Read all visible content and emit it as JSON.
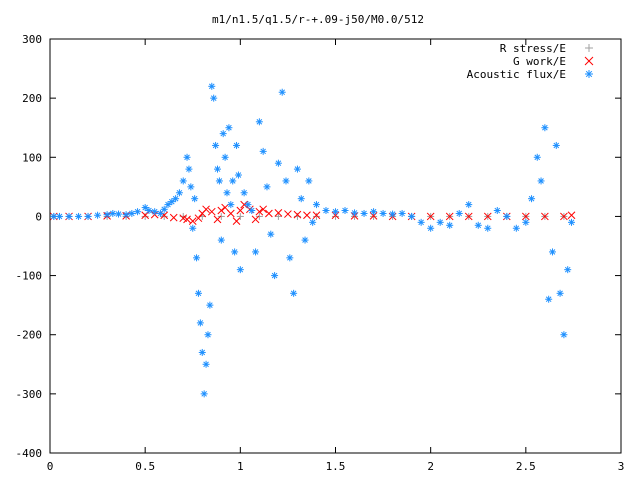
{
  "chart_data": {
    "type": "scatter",
    "title": "m1/n1.5/q1.5/r-+.09-j50/M0.0/512",
    "xlabel": "",
    "ylabel": "",
    "xlim": [
      0,
      3
    ],
    "ylim": [
      -400,
      300
    ],
    "x_ticks": [
      "0",
      "0.5",
      "1",
      "1.5",
      "2",
      "2.5",
      "3"
    ],
    "y_ticks": [
      "300",
      "200",
      "100",
      "0",
      "-100",
      "-200",
      "-300",
      "-400"
    ],
    "grid": false,
    "legend_position": "top-right",
    "series": [
      {
        "name": "R stress/E",
        "marker": "+",
        "color": "#a0a0a0",
        "x": [
          0.02,
          0.1,
          0.2,
          0.3,
          0.4,
          0.5,
          0.6,
          0.7,
          0.8,
          0.9,
          1.0,
          1.1,
          1.2,
          1.3,
          1.4,
          1.5,
          1.6,
          1.7,
          1.8,
          1.9,
          2.0,
          2.1,
          2.2,
          2.3,
          2.4,
          2.5,
          2.6,
          2.7
        ],
        "y": [
          0,
          0,
          0,
          0,
          0,
          0,
          0,
          0,
          0,
          0,
          0,
          0,
          0,
          0,
          0,
          0,
          0,
          0,
          0,
          0,
          0,
          0,
          0,
          0,
          0,
          0,
          0,
          0
        ]
      },
      {
        "name": "G work/E",
        "marker": "x",
        "color": "#ff0000",
        "x": [
          0.02,
          0.1,
          0.2,
          0.3,
          0.4,
          0.5,
          0.55,
          0.6,
          0.65,
          0.7,
          0.72,
          0.75,
          0.78,
          0.8,
          0.82,
          0.85,
          0.88,
          0.9,
          0.92,
          0.95,
          0.98,
          1.0,
          1.02,
          1.05,
          1.08,
          1.1,
          1.12,
          1.15,
          1.2,
          1.25,
          1.3,
          1.35,
          1.4,
          1.5,
          1.6,
          1.7,
          1.8,
          1.9,
          2.0,
          2.1,
          2.2,
          2.3,
          2.4,
          2.5,
          2.6,
          2.7,
          2.74
        ],
        "y": [
          0,
          0,
          0,
          1,
          1,
          2,
          3,
          2,
          -2,
          -3,
          -5,
          -8,
          -3,
          5,
          12,
          8,
          -5,
          10,
          15,
          5,
          -8,
          10,
          20,
          12,
          -5,
          8,
          12,
          5,
          6,
          4,
          3,
          2,
          2,
          2,
          1,
          1,
          0,
          0,
          0,
          0,
          0,
          0,
          0,
          0,
          0,
          0,
          2
        ]
      },
      {
        "name": "Acoustic flux/E",
        "marker": "*",
        "color": "#1e90ff",
        "x": [
          0.02,
          0.05,
          0.1,
          0.15,
          0.2,
          0.25,
          0.3,
          0.33,
          0.36,
          0.4,
          0.43,
          0.46,
          0.5,
          0.52,
          0.55,
          0.58,
          0.6,
          0.62,
          0.64,
          0.66,
          0.68,
          0.7,
          0.72,
          0.73,
          0.74,
          0.75,
          0.76,
          0.77,
          0.78,
          0.79,
          0.8,
          0.81,
          0.82,
          0.83,
          0.84,
          0.85,
          0.86,
          0.87,
          0.88,
          0.89,
          0.9,
          0.91,
          0.92,
          0.93,
          0.94,
          0.95,
          0.96,
          0.97,
          0.98,
          0.99,
          1.0,
          1.02,
          1.04,
          1.06,
          1.08,
          1.1,
          1.12,
          1.14,
          1.16,
          1.18,
          1.2,
          1.22,
          1.24,
          1.26,
          1.28,
          1.3,
          1.32,
          1.34,
          1.36,
          1.38,
          1.4,
          1.45,
          1.5,
          1.55,
          1.6,
          1.65,
          1.7,
          1.75,
          1.8,
          1.85,
          1.9,
          1.95,
          2.0,
          2.05,
          2.1,
          2.15,
          2.2,
          2.25,
          2.3,
          2.35,
          2.4,
          2.45,
          2.5,
          2.53,
          2.56,
          2.58,
          2.6,
          2.62,
          2.64,
          2.66,
          2.68,
          2.7,
          2.72,
          2.74
        ],
        "y": [
          0,
          0,
          0,
          0,
          0,
          2,
          3,
          5,
          4,
          3,
          5,
          8,
          15,
          10,
          8,
          5,
          12,
          20,
          25,
          30,
          40,
          60,
          100,
          80,
          50,
          -20,
          30,
          -70,
          -130,
          -180,
          -230,
          -300,
          -250,
          -200,
          -150,
          220,
          200,
          120,
          80,
          60,
          -40,
          140,
          100,
          40,
          150,
          20,
          60,
          -60,
          120,
          70,
          -90,
          40,
          20,
          10,
          -60,
          160,
          110,
          50,
          -30,
          -100,
          90,
          210,
          60,
          -70,
          -130,
          80,
          30,
          -40,
          60,
          -10,
          20,
          10,
          8,
          10,
          6,
          5,
          8,
          5,
          4,
          5,
          0,
          -10,
          -20,
          -10,
          -15,
          5,
          20,
          -15,
          -20,
          10,
          0,
          -20,
          -10,
          30,
          100,
          60,
          150,
          -140,
          -60,
          120,
          -130,
          -200,
          -90,
          -10
        ]
      }
    ]
  }
}
